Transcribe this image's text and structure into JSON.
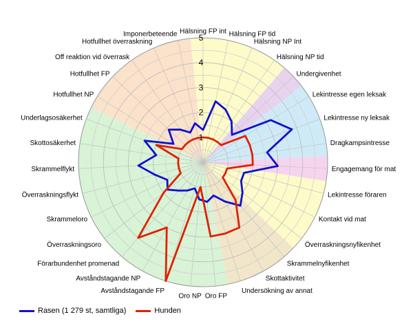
{
  "chart_data": {
    "type": "radar",
    "max": 5,
    "ticks": [
      "1",
      "2",
      "3",
      "4",
      "5"
    ],
    "categories": [
      "Hälsning FP int",
      "Hälsning FP tid",
      "Hälsning NP Int",
      "Hälsning NP tid",
      "Undergivenhet",
      "Lekintresse egen leksak",
      "Lekintresse ny leksak",
      "Dragkampsintresse",
      "Engagemang för mat",
      "Lekintresse föraren",
      "Kontakt vid mat",
      "Överraskningsnyfikenhet",
      "Skrammelnyfikenhet",
      "Skottaktivitet",
      "Undersökning av annat",
      "Oro FP",
      "Oro NP",
      "Avståndstagande FP",
      "Avståndstagande NP",
      "Förarbundenhet promenad",
      "Överraskningsoro",
      "Skrammeloro",
      "Överraskningsflykt",
      "Skrammelflykt",
      "Skottosäkerhet",
      "Underlagsosäkerhet",
      "Hotfullhet NP",
      "Hotfullhet FP",
      "Off reaktion vid överrask",
      "Hotfullhet överraskning",
      "Imponerbeteende"
    ],
    "sectors": [
      {
        "from": 0,
        "to": 4,
        "color": "#fdfbc9"
      },
      {
        "from": 4,
        "to": 5,
        "color": "#e8d3ef"
      },
      {
        "from": 5,
        "to": 8,
        "color": "#cfeaf7"
      },
      {
        "from": 8,
        "to": 9,
        "color": "#f6d4ee"
      },
      {
        "from": 9,
        "to": 12,
        "color": "#fdfbc9"
      },
      {
        "from": 12,
        "to": 15,
        "color": "#f1e6c9"
      },
      {
        "from": 15,
        "to": 26,
        "color": "#d8f3d6"
      },
      {
        "from": 26,
        "to": 31,
        "color": "#fbe2cb"
      }
    ],
    "series": [
      {
        "name": "Rasen (1 279 st, samtliga)",
        "color": "#1111cc",
        "values": [
          1.3,
          2.5,
          2.3,
          2.0,
          1.6,
          3.2,
          3.8,
          2.6,
          3.0,
          1.7,
          1.7,
          2.0,
          2.3,
          1.8,
          1.4,
          1.6,
          1.5,
          1.1,
          1.3,
          1.5,
          1.8,
          1.6,
          2.0,
          2.6,
          1.9,
          2.5,
          1.4,
          1.9,
          1.6,
          1.3,
          1.6
        ]
      },
      {
        "name": "Hunden",
        "color": "#dd2200",
        "values": [
          1.0,
          1.0,
          1.0,
          1.0,
          1.0,
          2.0,
          2.0,
          2.0,
          2.0,
          1.0,
          1.0,
          1.0,
          2.0,
          3.0,
          3.0,
          3.0,
          1.0,
          5.0,
          3.0,
          4.0,
          2.0,
          1.0,
          1.0,
          1.0,
          1.0,
          2.0,
          1.0,
          1.0,
          1.0,
          1.0,
          1.0
        ]
      }
    ],
    "grid": true,
    "legend_position": "bottom-left"
  }
}
